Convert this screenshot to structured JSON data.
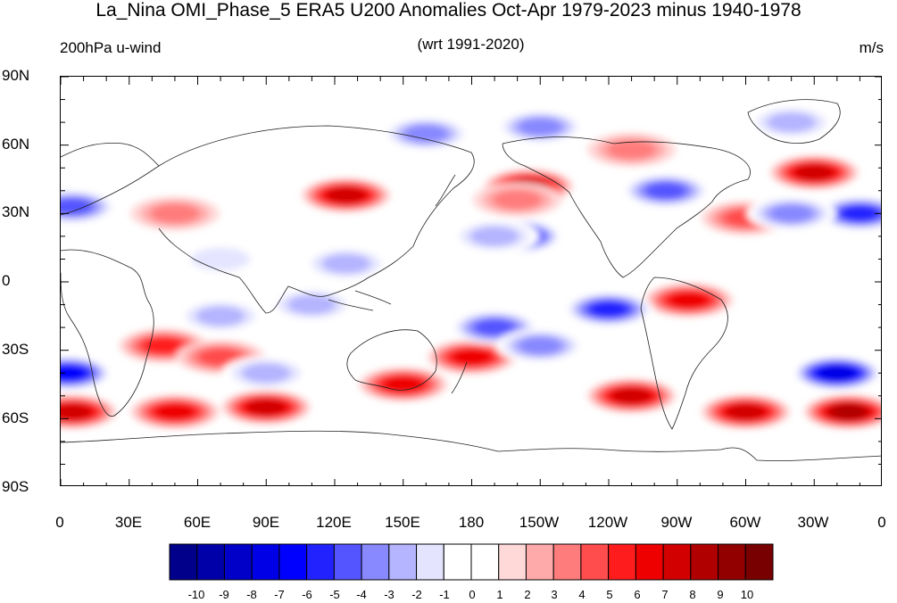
{
  "header": {
    "title": "La_Nina OMI_Phase_5 ERA5 U200 Anomalies Oct-Apr 1979-2023 minus 1940-1978",
    "left_subtitle": "200hPa u-wind",
    "center_subtitle": "(wrt 1991-2020)",
    "right_subtitle": "m/s"
  },
  "axes": {
    "lat_ticks": [
      "90N",
      "60N",
      "30N",
      "0",
      "30S",
      "60S",
      "90S"
    ],
    "lon_ticks": [
      "0",
      "30E",
      "60E",
      "90E",
      "120E",
      "150E",
      "180",
      "150W",
      "120W",
      "90W",
      "60W",
      "30W",
      "0"
    ]
  },
  "colorbar": {
    "labels": [
      "-10",
      "-9",
      "-8",
      "-7",
      "-6",
      "-5",
      "-4",
      "-3",
      "-2",
      "-1",
      "0",
      "1",
      "2",
      "3",
      "4",
      "5",
      "6",
      "7",
      "8",
      "9",
      "10"
    ],
    "colors": [
      "#00008b",
      "#0000a8",
      "#0000c8",
      "#0000e6",
      "#0000ff",
      "#2222ff",
      "#5555ff",
      "#8888ff",
      "#b4b4ff",
      "#e4e4ff",
      "#ffffff",
      "#ffffff",
      "#ffd8d8",
      "#ffaaaa",
      "#ff7c7c",
      "#ff4c4c",
      "#ff1c1c",
      "#ee0000",
      "#d20000",
      "#b00000",
      "#920000",
      "#780000"
    ]
  },
  "map": {
    "projection": "cylindrical-equidistant",
    "lon_range": [
      0,
      360
    ],
    "lat_range": [
      -90,
      90
    ],
    "anomaly_features": [
      {
        "lon": 5,
        "lat": -57,
        "value": 7
      },
      {
        "lon": 50,
        "lat": -57,
        "value": 6
      },
      {
        "lon": 90,
        "lat": -55,
        "value": 7
      },
      {
        "lon": 150,
        "lat": -45,
        "value": 6
      },
      {
        "lon": 250,
        "lat": -50,
        "value": 7
      },
      {
        "lon": 300,
        "lat": -57,
        "value": 7
      },
      {
        "lon": 345,
        "lat": -57,
        "value": 8
      },
      {
        "lon": 45,
        "lat": -28,
        "value": 5
      },
      {
        "lon": 70,
        "lat": -33,
        "value": 4
      },
      {
        "lon": 180,
        "lat": -33,
        "value": 6
      },
      {
        "lon": 125,
        "lat": 38,
        "value": 7
      },
      {
        "lon": 205,
        "lat": 42,
        "value": 7
      },
      {
        "lon": 200,
        "lat": 36,
        "value": 3
      },
      {
        "lon": 330,
        "lat": 48,
        "value": 7
      },
      {
        "lon": 275,
        "lat": -8,
        "value": 6
      },
      {
        "lon": 300,
        "lat": 28,
        "value": 4
      },
      {
        "lon": 250,
        "lat": 58,
        "value": 3
      },
      {
        "lon": 50,
        "lat": 30,
        "value": 3
      },
      {
        "lon": 3,
        "lat": -40,
        "value": -7
      },
      {
        "lon": 340,
        "lat": -40,
        "value": -8
      },
      {
        "lon": 90,
        "lat": -40,
        "value": -3
      },
      {
        "lon": 200,
        "lat": 20,
        "value": -7
      },
      {
        "lon": 190,
        "lat": -20,
        "value": -5
      },
      {
        "lon": 210,
        "lat": -28,
        "value": -4
      },
      {
        "lon": 240,
        "lat": -12,
        "value": -6
      },
      {
        "lon": 5,
        "lat": 33,
        "value": -5
      },
      {
        "lon": 350,
        "lat": 30,
        "value": -6
      },
      {
        "lon": 320,
        "lat": 30,
        "value": -4
      },
      {
        "lon": 265,
        "lat": 40,
        "value": -5
      },
      {
        "lon": 160,
        "lat": 65,
        "value": -4
      },
      {
        "lon": 210,
        "lat": 68,
        "value": -4
      },
      {
        "lon": 320,
        "lat": 70,
        "value": -3
      },
      {
        "lon": 110,
        "lat": -10,
        "value": -3
      },
      {
        "lon": 70,
        "lat": -15,
        "value": -3
      },
      {
        "lon": 125,
        "lat": 8,
        "value": -3
      },
      {
        "lon": 70,
        "lat": 10,
        "value": -2
      },
      {
        "lon": 190,
        "lat": 20,
        "value": -3
      }
    ]
  }
}
